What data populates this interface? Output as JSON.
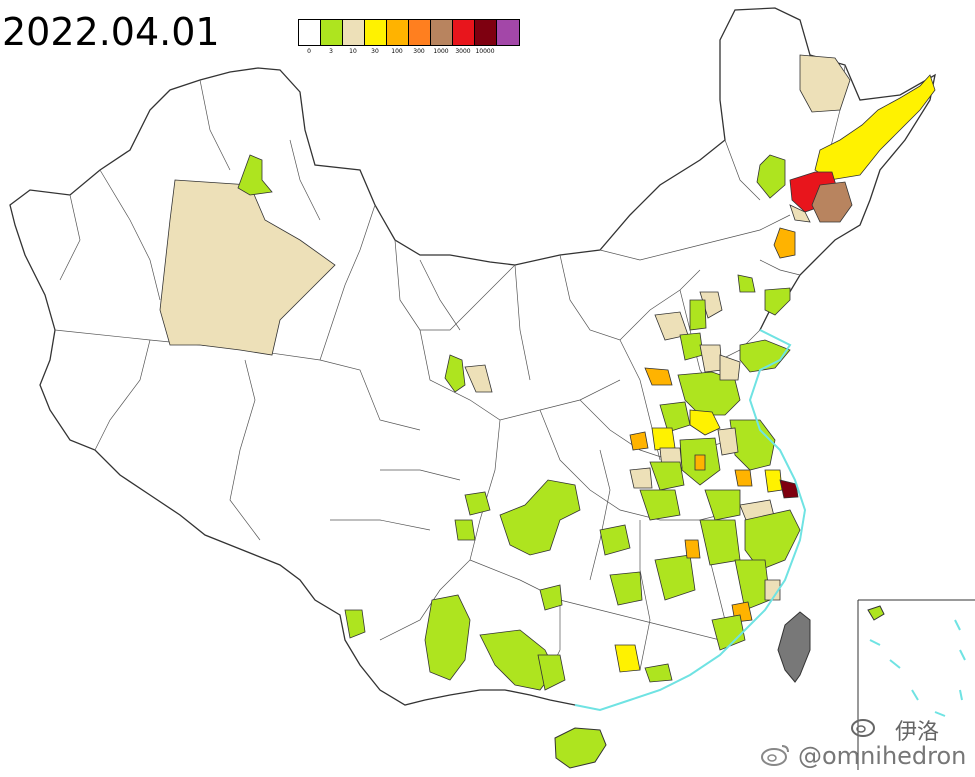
{
  "date": "2022.04.01",
  "legend": {
    "colors": [
      "#ffffff",
      "#aee41f",
      "#ede0b8",
      "#fff200",
      "#ffb300",
      "#ff7f1f",
      "#b8845f",
      "#e8151c",
      "#7e0010",
      "#a347a8"
    ],
    "ticks": [
      "0",
      "3",
      "10",
      "30",
      "100",
      "300",
      "1000",
      "3000",
      "10000",
      ""
    ]
  },
  "colors": {
    "border": "#333333",
    "coast": "#6fe3e3",
    "taiwan": "#787878",
    "default_fill": "#ffffff"
  },
  "watermark": {
    "author": "伊洛",
    "handle": "@omnihedron",
    "icon": "weibo-icon"
  }
}
